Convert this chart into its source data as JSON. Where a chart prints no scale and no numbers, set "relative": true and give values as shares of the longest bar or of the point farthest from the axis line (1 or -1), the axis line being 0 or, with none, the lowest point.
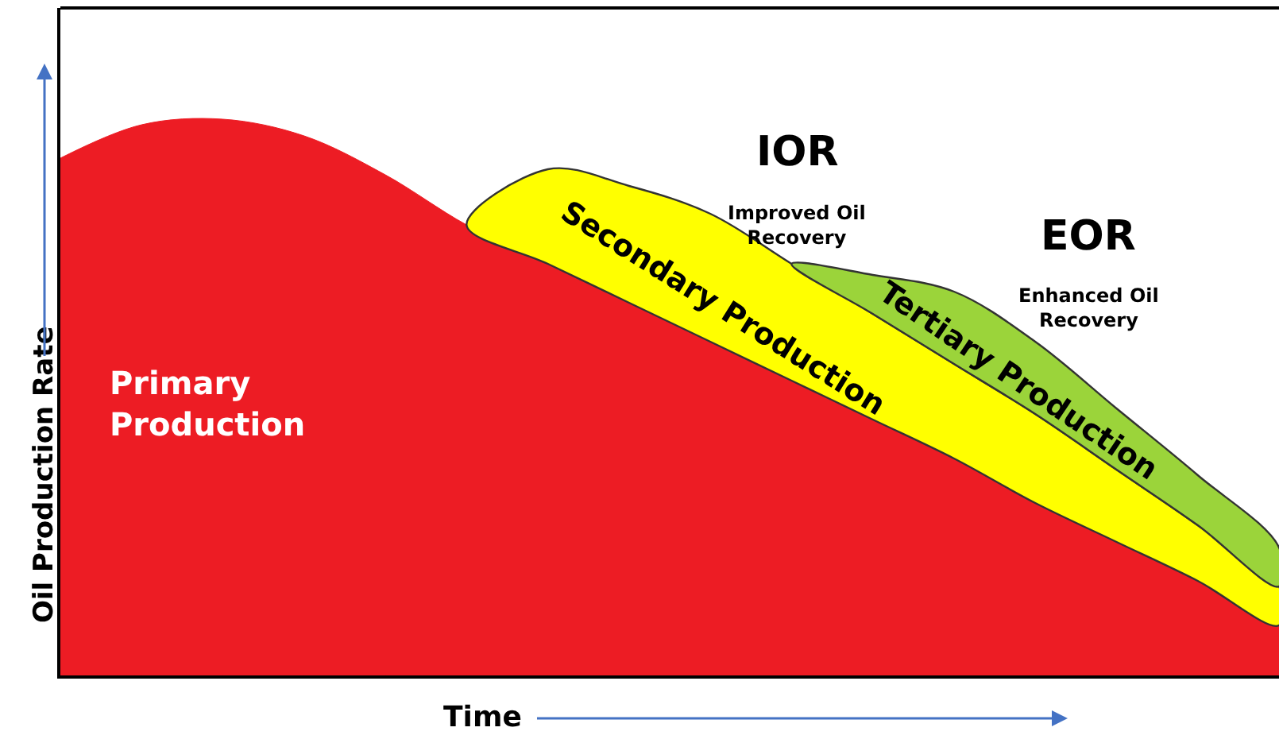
{
  "chart_data": {
    "type": "area",
    "relative": true,
    "stacked": true,
    "xlabel": "Time",
    "ylabel": "Oil Production Rate",
    "legend": false,
    "categories": [
      null,
      null,
      null,
      null,
      null,
      null,
      null,
      null,
      null,
      null,
      null,
      null,
      null,
      null,
      null,
      null
    ],
    "series": [
      {
        "name": "Primary Production",
        "color": "#ed1c24",
        "values": [
          0.93,
          0.99,
          1.0,
          0.97,
          0.9,
          0.81,
          0.74,
          0.67,
          0.6,
          0.53,
          0.46,
          0.39,
          0.31,
          0.24,
          0.17,
          0.09
        ]
      },
      {
        "name": "Secondary Production",
        "color": "#ffff00",
        "values": [
          null,
          null,
          null,
          null,
          null,
          0,
          0.17,
          0.21,
          0.23,
          0.21,
          0.19,
          0.17,
          0.16,
          0.13,
          0.1,
          0.07
        ]
      },
      {
        "name": "Tertiary Production",
        "color": "#9bd43a",
        "values": [
          null,
          null,
          null,
          null,
          null,
          null,
          null,
          null,
          null,
          0,
          0.07,
          0.13,
          0.13,
          0.11,
          0.09,
          0.07
        ]
      }
    ],
    "annotations": [
      "IOR",
      "Improved Oil\nRecovery",
      "EOR",
      "Enhanced Oil\nRecovery"
    ]
  }
}
